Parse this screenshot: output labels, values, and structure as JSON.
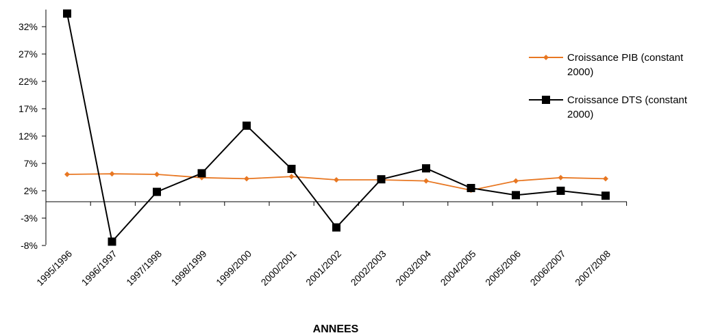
{
  "chart_data": {
    "type": "line",
    "categories": [
      "1995/1996",
      "1996/1997",
      "1997/1998",
      "1998/1999",
      "1999/2000",
      "2000/2001",
      "2001/2002",
      "2002/2003",
      "2003/2004",
      "2004/2005",
      "2005/2006",
      "2006/2007",
      "2007/2008"
    ],
    "series": [
      {
        "name_lines": [
          "Croissance PIB  (constant",
          "2000)"
        ],
        "color": "#E87722",
        "marker": "diamond",
        "values": [
          5.0,
          5.1,
          5.0,
          4.4,
          4.2,
          4.6,
          4.0,
          4.0,
          3.8,
          2.1,
          3.8,
          4.4,
          4.2
        ]
      },
      {
        "name_lines": [
          "Croissance DTS (constant",
          "2000)"
        ],
        "color": "#000000",
        "marker": "square",
        "values": [
          null,
          -7.3,
          1.8,
          5.2,
          13.9,
          6.0,
          -4.7,
          4.1,
          6.1,
          2.5,
          1.2,
          2.0,
          1.1
        ]
      }
    ],
    "first_dts_value_above_axis": 34.4,
    "y_ticks": [
      32,
      27,
      22,
      17,
      12,
      7,
      2,
      -3,
      -8
    ],
    "y_tick_labels": [
      "32%",
      "27%",
      "22%",
      "17%",
      "12%",
      "7%",
      "2%",
      "-3%",
      "-8%"
    ],
    "ylim": [
      -8,
      35
    ],
    "xlabel": "ANNEES",
    "ylabel": "",
    "grid": false,
    "legend_position": "right"
  }
}
